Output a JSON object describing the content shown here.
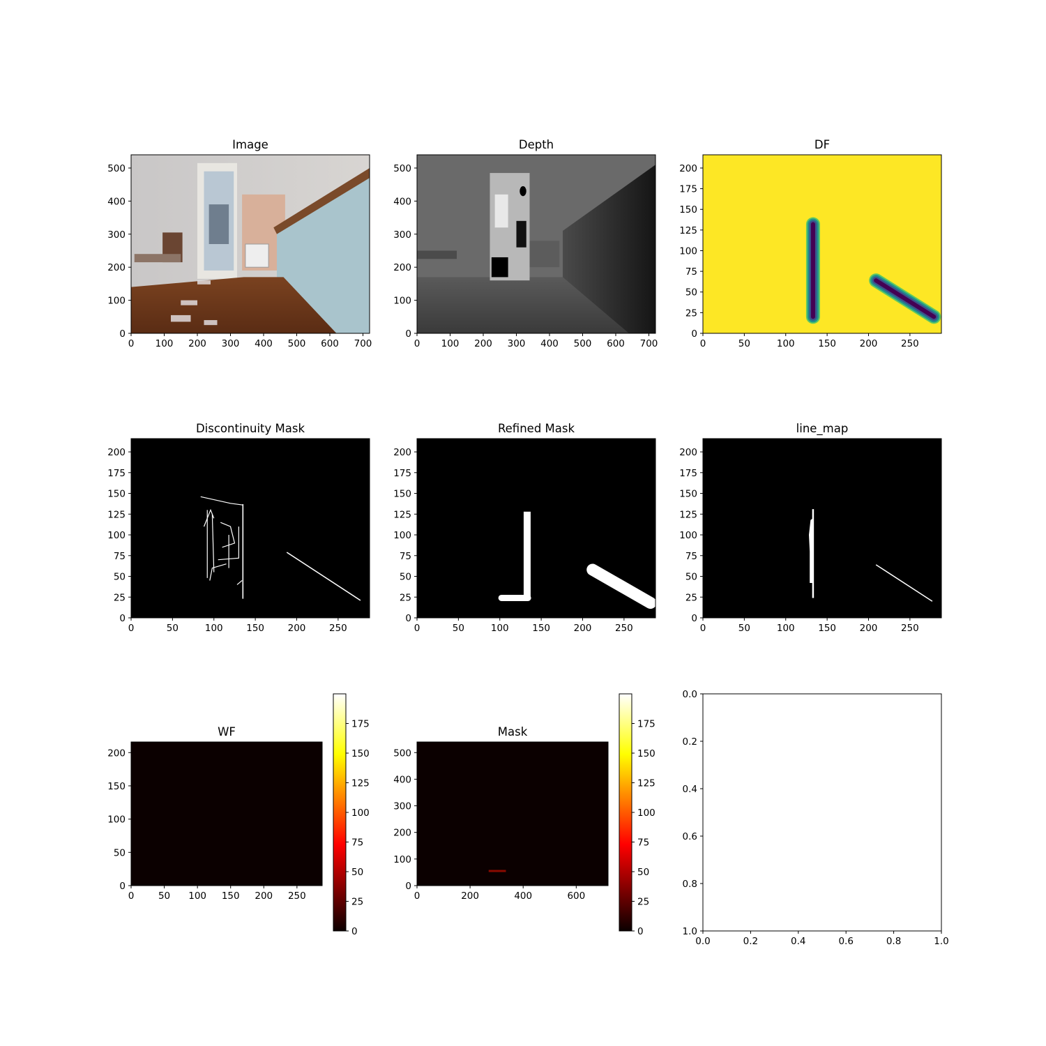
{
  "figure": {
    "panels": [
      {
        "id": "image",
        "title": "Image",
        "type": "image",
        "content": "rgb-photo",
        "xticks": [
          "0",
          "100",
          "200",
          "300",
          "400",
          "500",
          "600",
          "700"
        ],
        "yticks": [
          "0",
          "100",
          "200",
          "300",
          "400",
          "500"
        ],
        "xlim": [
          0,
          720
        ],
        "ylim": [
          540,
          0
        ]
      },
      {
        "id": "depth",
        "title": "Depth",
        "type": "image",
        "content": "depth-gray",
        "xticks": [
          "0",
          "100",
          "200",
          "300",
          "400",
          "500",
          "600",
          "700"
        ],
        "yticks": [
          "0",
          "100",
          "200",
          "300",
          "400",
          "500"
        ],
        "xlim": [
          0,
          720
        ],
        "ylim": [
          540,
          0
        ]
      },
      {
        "id": "df",
        "title": "DF",
        "type": "image",
        "content": "distance-field",
        "colors": {
          "background": "#fde725",
          "line": "#440154",
          "halo": "#21918c"
        },
        "xticks": [
          "0",
          "50",
          "100",
          "150",
          "200",
          "250"
        ],
        "yticks": [
          "0",
          "25",
          "50",
          "75",
          "100",
          "125",
          "150",
          "175",
          "200"
        ],
        "xlim": [
          0,
          288
        ],
        "ylim": [
          216,
          0
        ]
      },
      {
        "id": "discontinuity",
        "title": "Discontinuity Mask",
        "type": "image",
        "content": "binary-edges",
        "xticks": [
          "0",
          "50",
          "100",
          "150",
          "200",
          "250"
        ],
        "yticks": [
          "0",
          "25",
          "50",
          "75",
          "100",
          "125",
          "150",
          "175",
          "200"
        ],
        "xlim": [
          0,
          288
        ],
        "ylim": [
          216,
          0
        ]
      },
      {
        "id": "refined",
        "title": "Refined Mask",
        "type": "image",
        "content": "binary-refined",
        "xticks": [
          "0",
          "50",
          "100",
          "150",
          "200",
          "250"
        ],
        "yticks": [
          "0",
          "25",
          "50",
          "75",
          "100",
          "125",
          "150",
          "175",
          "200"
        ],
        "xlim": [
          0,
          288
        ],
        "ylim": [
          216,
          0
        ]
      },
      {
        "id": "linemap",
        "title": "line_map",
        "type": "image",
        "content": "binary-lines",
        "xticks": [
          "0",
          "50",
          "100",
          "150",
          "200",
          "250"
        ],
        "yticks": [
          "0",
          "25",
          "50",
          "75",
          "100",
          "125",
          "150",
          "175",
          "200"
        ],
        "xlim": [
          0,
          288
        ],
        "ylim": [
          216,
          0
        ]
      },
      {
        "id": "wf",
        "title": "WF",
        "type": "heatmap",
        "content": "heat-wf",
        "xticks": [
          "0",
          "50",
          "100",
          "150",
          "200",
          "250"
        ],
        "yticks": [
          "0",
          "50",
          "100",
          "150",
          "200"
        ],
        "xlim": [
          0,
          288
        ],
        "ylim": [
          216,
          0
        ],
        "colorbar": {
          "ticks": [
            "0",
            "25",
            "50",
            "75",
            "100",
            "125",
            "150",
            "175"
          ],
          "range": [
            0,
            200
          ],
          "cmap": "hot"
        }
      },
      {
        "id": "mask",
        "title": "Mask",
        "type": "heatmap",
        "content": "heat-mask",
        "xticks": [
          "0",
          "200",
          "400",
          "600"
        ],
        "yticks": [
          "0",
          "100",
          "200",
          "300",
          "400",
          "500"
        ],
        "xlim": [
          0,
          720
        ],
        "ylim": [
          540,
          0
        ],
        "colorbar": {
          "ticks": [
            "0",
            "25",
            "50",
            "75",
            "100",
            "125",
            "150",
            "175"
          ],
          "range": [
            0,
            200
          ],
          "cmap": "hot"
        }
      },
      {
        "id": "empty",
        "title": "",
        "type": "empty-axes",
        "content": "none",
        "xticks": [
          "0.0",
          "0.2",
          "0.4",
          "0.6",
          "0.8",
          "1.0"
        ],
        "yticks": [
          "0.0",
          "0.2",
          "0.4",
          "0.6",
          "0.8",
          "1.0"
        ],
        "xlim": [
          0,
          1
        ],
        "ylim": [
          0,
          1
        ]
      }
    ]
  },
  "chart_data": [
    {
      "type": "heatmap",
      "title": "Image",
      "xlim": [
        0,
        720
      ],
      "ylim": [
        540,
        0
      ],
      "grid": false
    },
    {
      "type": "heatmap",
      "title": "Depth",
      "xlim": [
        0,
        720
      ],
      "ylim": [
        540,
        0
      ],
      "grid": false
    },
    {
      "type": "heatmap",
      "title": "DF",
      "xlim": [
        0,
        288
      ],
      "ylim": [
        216,
        0
      ],
      "grid": false,
      "segments": [
        {
          "x": [
            133,
            133
          ],
          "y": [
            20,
            132
          ]
        },
        {
          "x": [
            209,
            279
          ],
          "y": [
            64,
            20
          ]
        }
      ]
    },
    {
      "type": "heatmap",
      "title": "Discontinuity Mask",
      "xlim": [
        0,
        288
      ],
      "ylim": [
        216,
        0
      ],
      "grid": false
    },
    {
      "type": "heatmap",
      "title": "Refined Mask",
      "xlim": [
        0,
        288
      ],
      "ylim": [
        216,
        0
      ],
      "grid": false
    },
    {
      "type": "heatmap",
      "title": "line_map",
      "xlim": [
        0,
        288
      ],
      "ylim": [
        216,
        0
      ],
      "grid": false,
      "segments": [
        {
          "x": [
            133,
            133
          ],
          "y": [
            24,
            131
          ]
        },
        {
          "x": [
            209,
            277
          ],
          "y": [
            64,
            20
          ]
        }
      ]
    },
    {
      "type": "heatmap",
      "title": "WF",
      "xlim": [
        0,
        288
      ],
      "ylim": [
        216,
        0
      ],
      "grid": false,
      "colorbar_range": [
        0,
        200
      ]
    },
    {
      "type": "heatmap",
      "title": "Mask",
      "xlim": [
        0,
        720
      ],
      "ylim": [
        540,
        0
      ],
      "grid": false,
      "colorbar_range": [
        0,
        200
      ]
    },
    {
      "type": "scatter",
      "title": "",
      "xlim": [
        0,
        1
      ],
      "ylim": [
        0,
        1
      ],
      "grid": false
    }
  ]
}
